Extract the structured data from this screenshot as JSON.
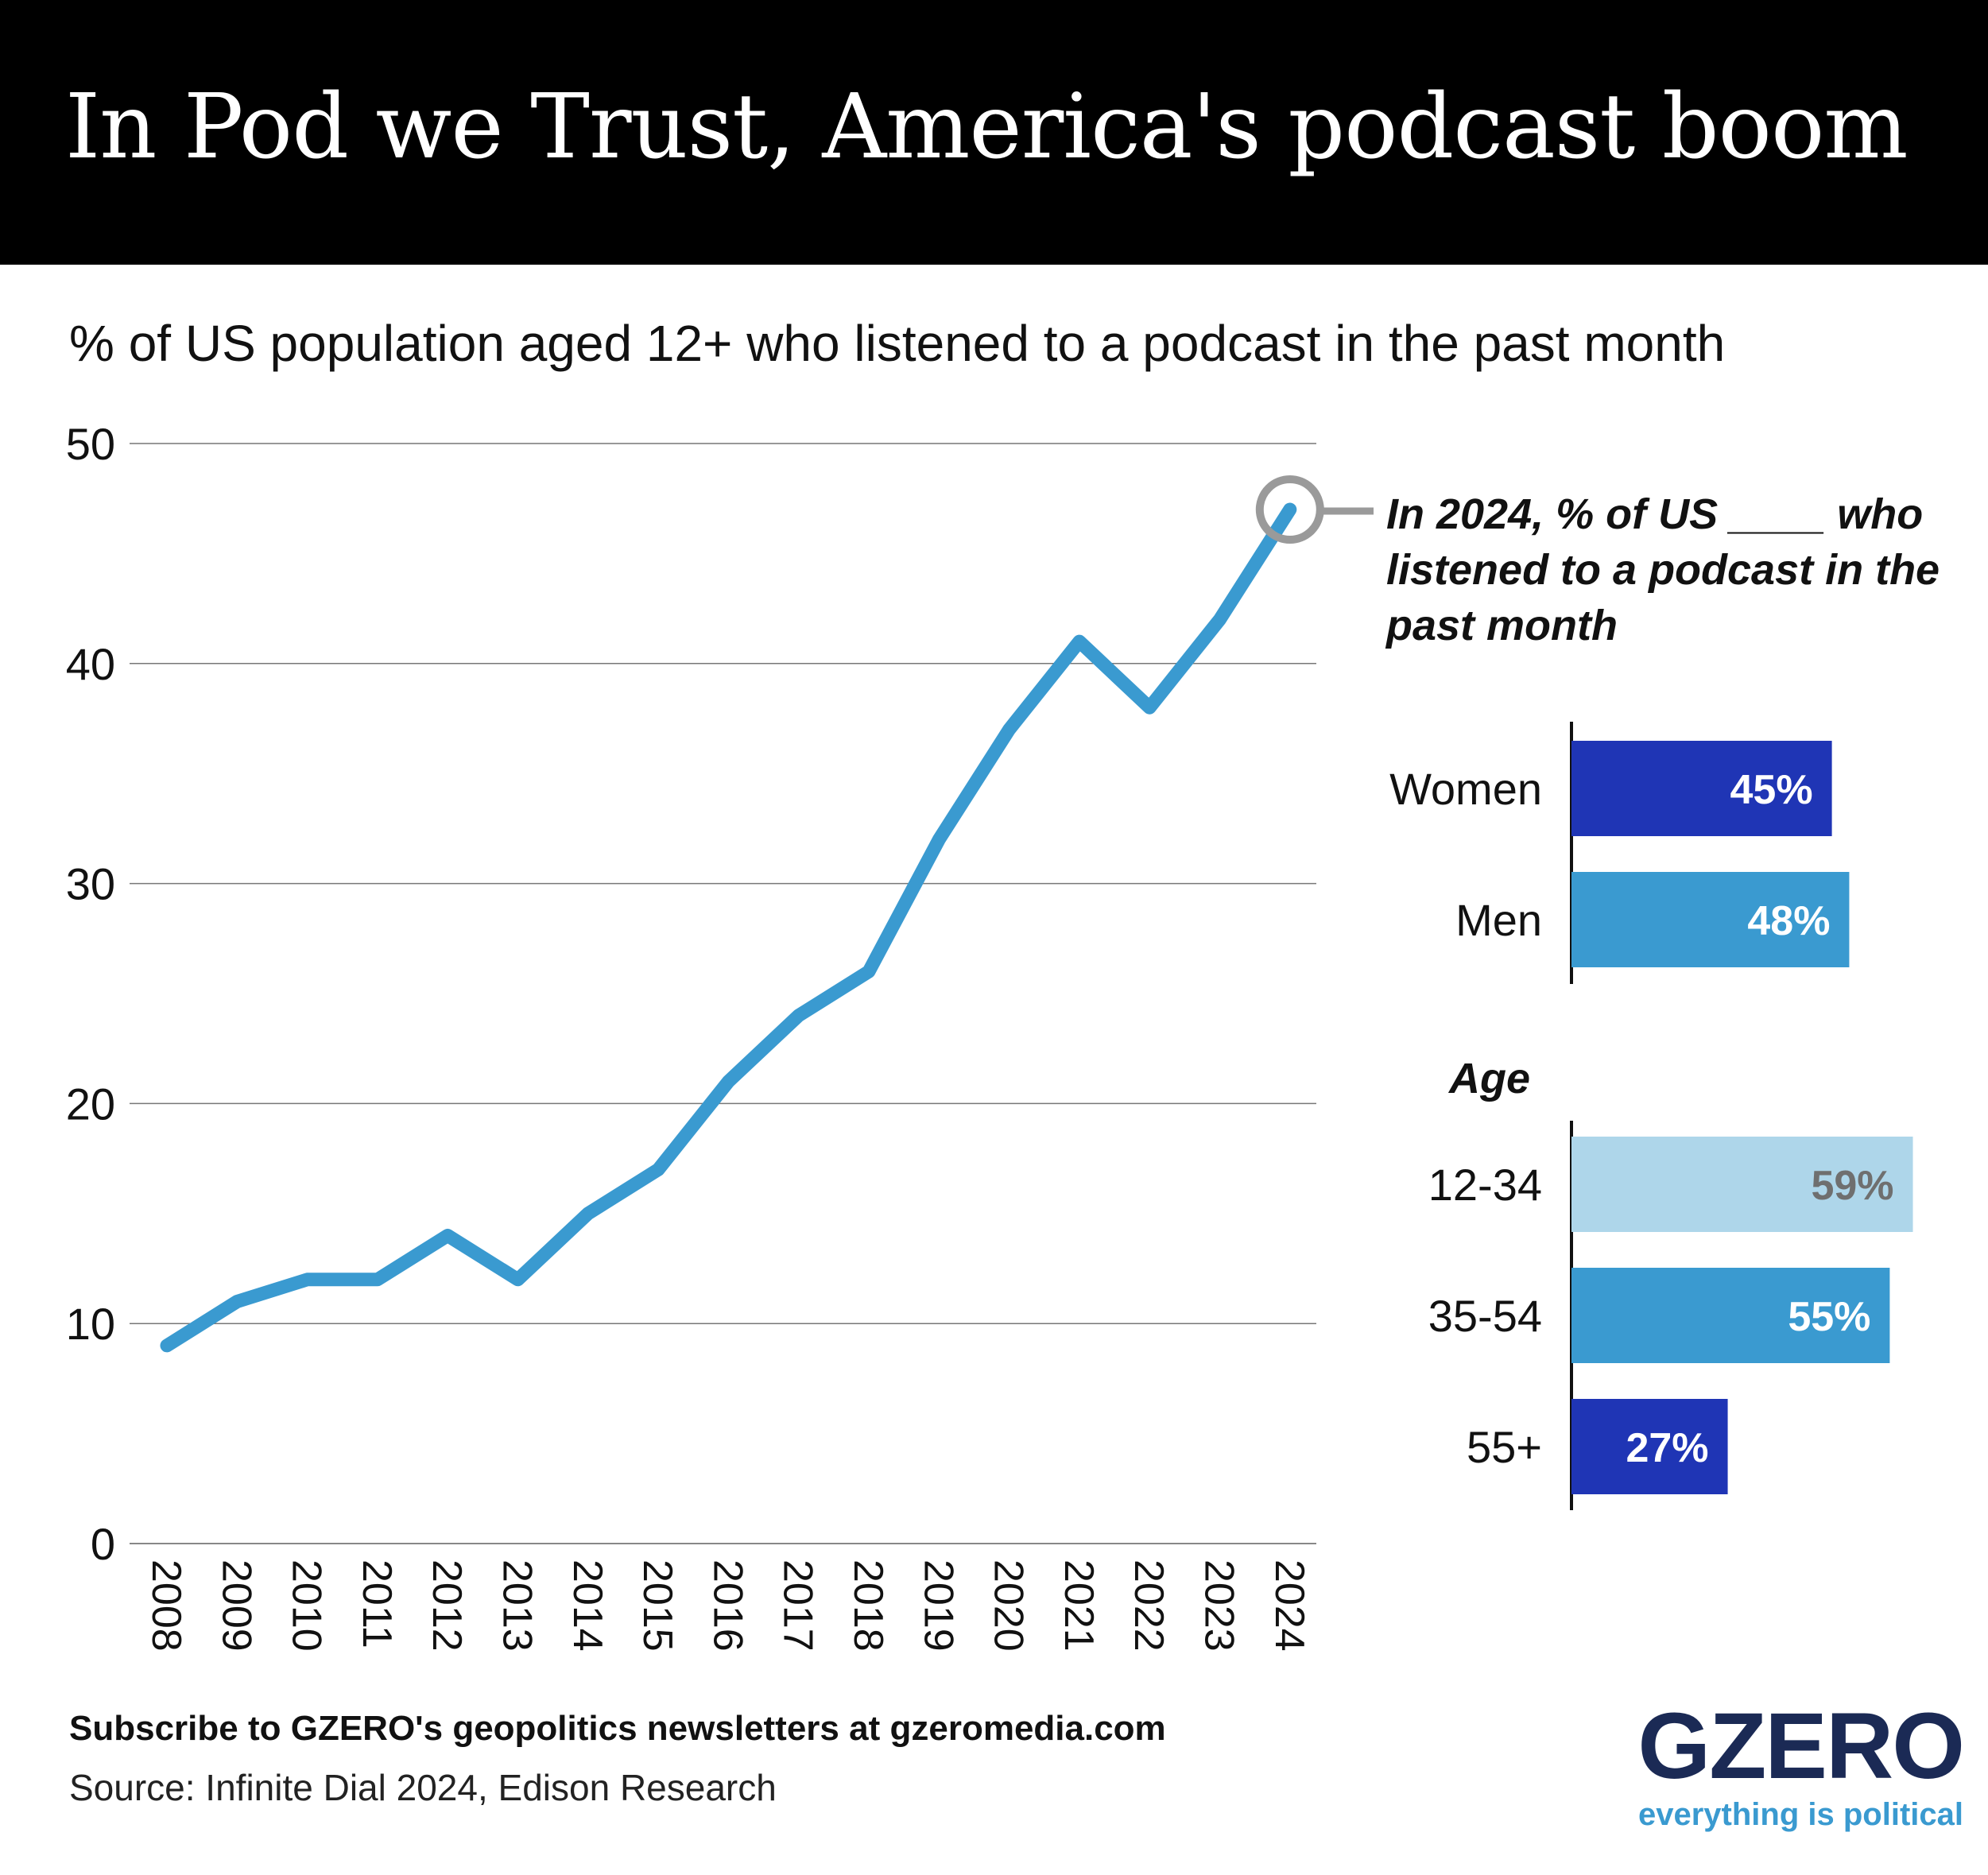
{
  "header": {
    "title": "In Pod we Trust, America's podcast boom",
    "subtitle": "% of US population aged 12+ who listened to a podcast in the past month"
  },
  "chart_data": [
    {
      "type": "line",
      "title": "% of US population aged 12+ who listened to a podcast in the past month",
      "x": [
        "2008",
        "2009",
        "2010",
        "2011",
        "2012",
        "2013",
        "2014",
        "2015",
        "2016",
        "2017",
        "2018",
        "2019",
        "2020",
        "2021",
        "2022",
        "2023",
        "2024"
      ],
      "series": [
        {
          "values": [
            9,
            11,
            12,
            12,
            14,
            12,
            15,
            17,
            21,
            24,
            26,
            32,
            37,
            41,
            38,
            42,
            47
          ]
        }
      ],
      "ylim": [
        0,
        50
      ],
      "yticks": [
        0,
        10,
        20,
        30,
        40,
        50
      ],
      "grid": true,
      "colors": {
        "line": "#3a9ad0",
        "highlight_ring": "#9a9a9a"
      }
    },
    {
      "type": "bar",
      "title": "In 2024, % of US ____ who listened to a podcast in the past month",
      "groups": [
        {
          "label": "",
          "categories": [
            "Women",
            "Men"
          ],
          "values": [
            45,
            48
          ],
          "value_labels": [
            "45%",
            "48%"
          ],
          "colors": [
            "#1f35b5",
            "#3a9ad0"
          ]
        },
        {
          "label": "Age",
          "categories": [
            "12-34",
            "35-54",
            "55+"
          ],
          "values": [
            59,
            55,
            27
          ],
          "value_labels": [
            "59%",
            "55%",
            "27%"
          ],
          "colors": [
            "#aed6ea",
            "#3a9ad0",
            "#1f35b5"
          ]
        }
      ]
    }
  ],
  "footer": {
    "subscribe": "Subscribe to GZERO's geopolitics newsletters at gzeromedia.com",
    "source": "Source: Infinite Dial 2024, Edison Research"
  },
  "logo": {
    "wordmark": "GZERO",
    "tagline": "everything is political"
  }
}
